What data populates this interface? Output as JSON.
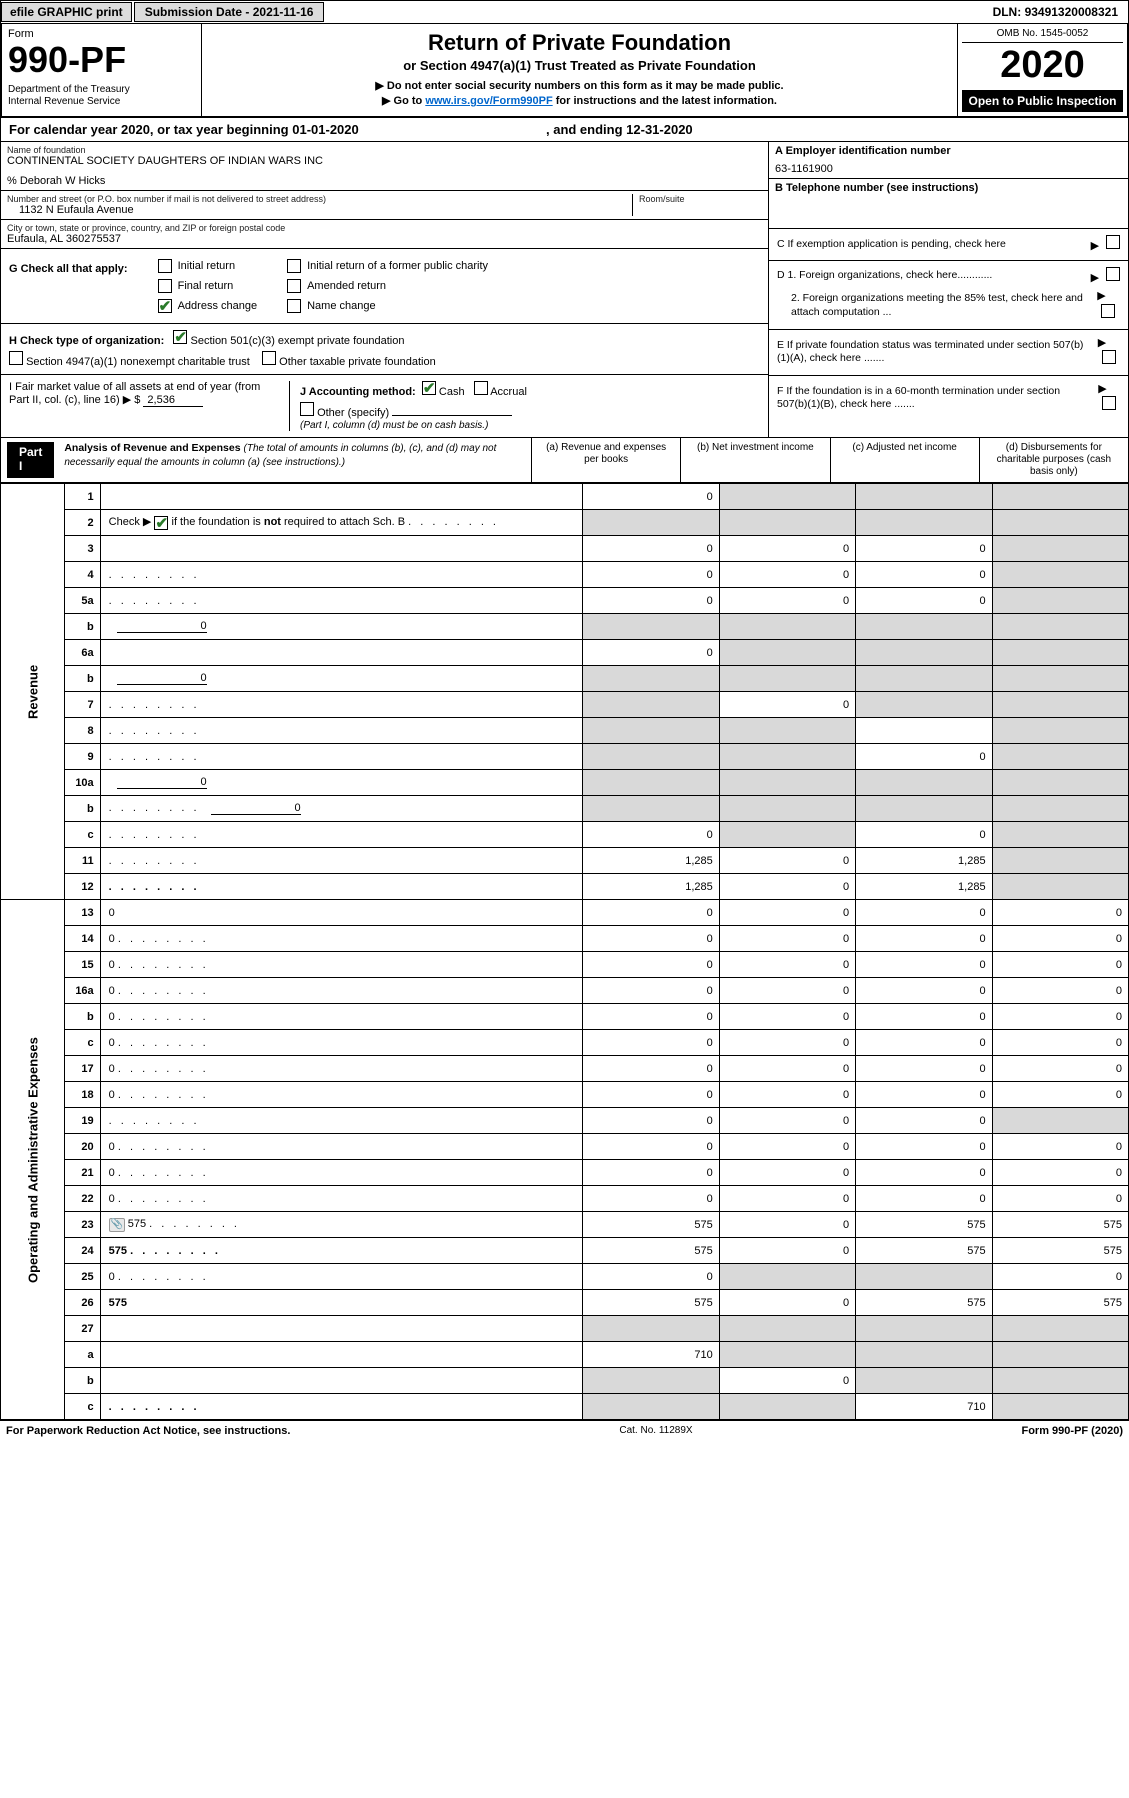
{
  "topbar": {
    "efile": "efile GRAPHIC print",
    "submission_label": "Submission Date - ",
    "submission_date": "2021-11-16",
    "dln_label": "DLN: ",
    "dln": "93491320008321"
  },
  "header": {
    "form_label": "Form",
    "form_no": "990-PF",
    "dept": "Department of the Treasury\nInternal Revenue Service",
    "title": "Return of Private Foundation",
    "subtitle": "or Section 4947(a)(1) Trust Treated as Private Foundation",
    "note1": "▶ Do not enter social security numbers on this form as it may be made public.",
    "note2_prefix": "▶ Go to ",
    "note2_link": "www.irs.gov/Form990PF",
    "note2_suffix": " for instructions and the latest information.",
    "omb": "OMB No. 1545-0052",
    "year": "2020",
    "open": "Open to Public Inspection"
  },
  "cal_year": {
    "prefix": "For calendar year 2020, or tax year beginning ",
    "begin": "01-01-2020",
    "mid": " , and ending ",
    "end": "12-31-2020"
  },
  "ident": {
    "name_label": "Name of foundation",
    "name": "CONTINENTAL SOCIETY DAUGHTERS OF INDIAN WARS INC",
    "care_of": "% Deborah W Hicks",
    "addr_label": "Number and street (or P.O. box number if mail is not delivered to street address)",
    "addr": "1132 N Eufaula Avenue",
    "room_label": "Room/suite",
    "room": "",
    "city_label": "City or town, state or province, country, and ZIP or foreign postal code",
    "city": "Eufaula, AL 360275537",
    "ein_label": "A Employer identification number",
    "ein": "63-1161900",
    "tel_label": "B Telephone number (see instructions)",
    "tel": "",
    "pending_label": "C If exemption application is pending, check here",
    "d1": "D 1. Foreign organizations, check here............",
    "d2": "2. Foreign organizations meeting the 85% test, check here and attach computation ...",
    "e": "E If private foundation status was terminated under section 507(b)(1)(A), check here .......",
    "f": "F If the foundation is in a 60-month termination under section 507(b)(1)(B), check here ......."
  },
  "g": {
    "label": "G Check all that apply:",
    "initial": "Initial return",
    "initial_former": "Initial return of a former public charity",
    "final": "Final return",
    "amended": "Amended return",
    "addr_change": "Address change",
    "name_change": "Name change",
    "addr_change_checked": true
  },
  "h": {
    "label": "H Check type of organization:",
    "c3": "Section 501(c)(3) exempt private foundation",
    "c3_checked": true,
    "s4947": "Section 4947(a)(1) nonexempt charitable trust",
    "other_tax": "Other taxable private foundation"
  },
  "i": {
    "label": "I Fair market value of all assets at end of year (from Part II, col. (c), line 16) ▶ $",
    "val": "2,536"
  },
  "j": {
    "label": "J Accounting method:",
    "cash": "Cash",
    "cash_checked": true,
    "accrual": "Accrual",
    "other": "Other (specify)",
    "note": "(Part I, column (d) must be on cash basis.)"
  },
  "part1": {
    "tag": "Part I",
    "title": "Analysis of Revenue and Expenses",
    "desc": "(The total of amounts in columns (b), (c), and (d) may not necessarily equal the amounts in column (a) (see instructions).)",
    "cols": {
      "a": "(a) Revenue and expenses per books",
      "b": "(b) Net investment income",
      "c": "(c) Adjusted net income",
      "d": "(d) Disbursements for charitable purposes (cash basis only)"
    }
  },
  "rows": [
    {
      "n": "1",
      "d": "",
      "a": "0",
      "b": "",
      "c": "",
      "shade_b": true,
      "shade_c": true,
      "shade_d": true
    },
    {
      "n": "2",
      "d": "",
      "dots": true,
      "a": "",
      "b": "",
      "c": "",
      "shade_all": true,
      "chk_in_desc": true
    },
    {
      "n": "3",
      "d": "",
      "a": "0",
      "b": "0",
      "c": "0",
      "shade_d": true
    },
    {
      "n": "4",
      "d": "",
      "dots": true,
      "a": "0",
      "b": "0",
      "c": "0",
      "shade_d": true
    },
    {
      "n": "5a",
      "d": "",
      "dots": true,
      "a": "0",
      "b": "0",
      "c": "0",
      "shade_d": true
    },
    {
      "n": "b",
      "d": "",
      "inline": "0",
      "a": "",
      "b": "",
      "c": "",
      "shade_all": true
    },
    {
      "n": "6a",
      "d": "",
      "a": "0",
      "b": "",
      "c": "",
      "shade_b": true,
      "shade_c": true,
      "shade_d": true
    },
    {
      "n": "b",
      "d": "",
      "inline": "0",
      "a": "",
      "b": "",
      "c": "",
      "shade_all": true
    },
    {
      "n": "7",
      "d": "",
      "dots": true,
      "a": "",
      "b": "0",
      "c": "",
      "shade_a": true,
      "shade_c": true,
      "shade_d": true
    },
    {
      "n": "8",
      "d": "",
      "dots": true,
      "a": "",
      "b": "",
      "c": "",
      "shade_a": true,
      "shade_b": true,
      "shade_d": true
    },
    {
      "n": "9",
      "d": "",
      "dots": true,
      "a": "",
      "b": "",
      "c": "0",
      "shade_a": true,
      "shade_b": true,
      "shade_d": true
    },
    {
      "n": "10a",
      "d": "",
      "inline": "0",
      "a": "",
      "b": "",
      "c": "",
      "shade_all": true
    },
    {
      "n": "b",
      "d": "",
      "dots": true,
      "inline": "0",
      "a": "",
      "b": "",
      "c": "",
      "shade_all": true
    },
    {
      "n": "c",
      "d": "",
      "dots": true,
      "a": "0",
      "b": "",
      "c": "0",
      "shade_b": true,
      "shade_d": true
    },
    {
      "n": "11",
      "d": "",
      "dots": true,
      "a": "1,285",
      "b": "0",
      "c": "1,285",
      "shade_d": true
    },
    {
      "n": "12",
      "d": "",
      "dots": true,
      "bold": true,
      "a": "1,285",
      "b": "0",
      "c": "1,285",
      "shade_d": true
    },
    {
      "n": "13",
      "d": "0",
      "a": "0",
      "b": "0",
      "c": "0"
    },
    {
      "n": "14",
      "d": "0",
      "dots": true,
      "a": "0",
      "b": "0",
      "c": "0"
    },
    {
      "n": "15",
      "d": "0",
      "dots": true,
      "a": "0",
      "b": "0",
      "c": "0"
    },
    {
      "n": "16a",
      "d": "0",
      "dots": true,
      "a": "0",
      "b": "0",
      "c": "0"
    },
    {
      "n": "b",
      "d": "0",
      "dots": true,
      "a": "0",
      "b": "0",
      "c": "0"
    },
    {
      "n": "c",
      "d": "0",
      "dots": true,
      "a": "0",
      "b": "0",
      "c": "0"
    },
    {
      "n": "17",
      "d": "0",
      "dots": true,
      "a": "0",
      "b": "0",
      "c": "0"
    },
    {
      "n": "18",
      "d": "0",
      "dots": true,
      "a": "0",
      "b": "0",
      "c": "0"
    },
    {
      "n": "19",
      "d": "",
      "dots": true,
      "a": "0",
      "b": "0",
      "c": "0",
      "shade_d": true
    },
    {
      "n": "20",
      "d": "0",
      "dots": true,
      "a": "0",
      "b": "0",
      "c": "0"
    },
    {
      "n": "21",
      "d": "0",
      "dots": true,
      "a": "0",
      "b": "0",
      "c": "0"
    },
    {
      "n": "22",
      "d": "0",
      "dots": true,
      "a": "0",
      "b": "0",
      "c": "0"
    },
    {
      "n": "23",
      "d": "575",
      "dots": true,
      "attach": true,
      "a": "575",
      "b": "0",
      "c": "575"
    },
    {
      "n": "24",
      "d": "575",
      "dots": true,
      "bold": true,
      "a": "575",
      "b": "0",
      "c": "575"
    },
    {
      "n": "25",
      "d": "0",
      "dots": true,
      "a": "0",
      "b": "",
      "c": "",
      "shade_b": true,
      "shade_c": true
    },
    {
      "n": "26",
      "d": "575",
      "bold": true,
      "a": "575",
      "b": "0",
      "c": "575"
    },
    {
      "n": "27",
      "d": "",
      "a": "",
      "b": "",
      "c": "",
      "shade_all": true
    },
    {
      "n": "a",
      "d": "",
      "bold": true,
      "a": "710",
      "b": "",
      "c": "",
      "shade_b": true,
      "shade_c": true,
      "shade_d": true
    },
    {
      "n": "b",
      "d": "",
      "bold": true,
      "a": "",
      "b": "0",
      "c": "",
      "shade_a": true,
      "shade_c": true,
      "shade_d": true
    },
    {
      "n": "c",
      "d": "",
      "dots": true,
      "bold": true,
      "a": "",
      "b": "",
      "c": "710",
      "shade_a": true,
      "shade_b": true,
      "shade_d": true
    }
  ],
  "side_labels": {
    "rev": "Revenue",
    "exp": "Operating and Administrative Expenses"
  },
  "footer": {
    "left": "For Paperwork Reduction Act Notice, see instructions.",
    "mid": "Cat. No. 11289X",
    "right": "Form 990-PF (2020)"
  }
}
